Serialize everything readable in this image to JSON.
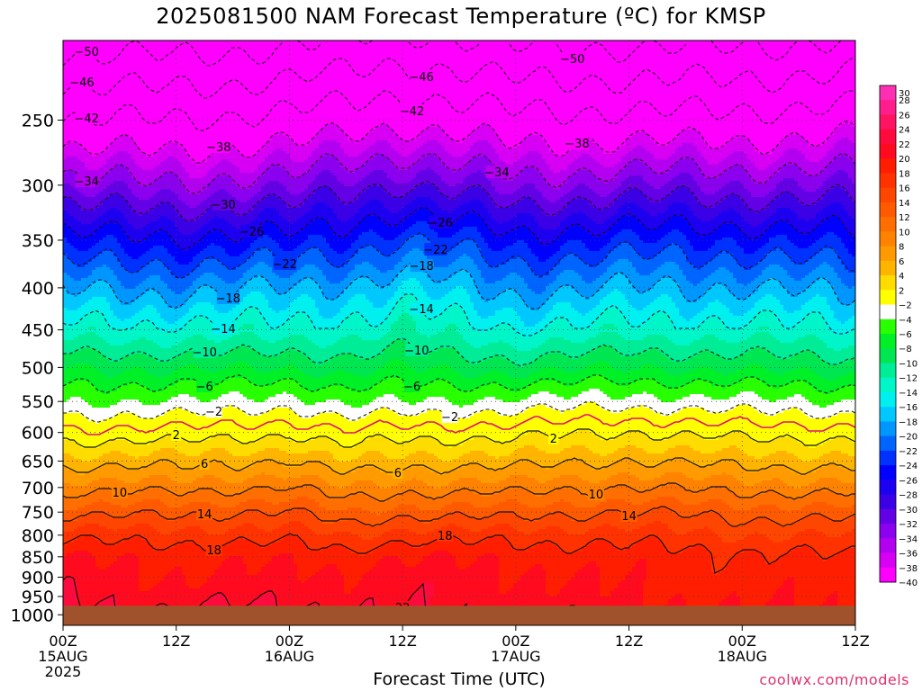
{
  "title": "2025081500 NAM Forecast Temperature (ºC) for KMSP",
  "xlabel": "Forecast Time (UTC)",
  "credit": "coolwx.com/models",
  "chart_data": {
    "type": "heatmap",
    "title": "2025081500 NAM Forecast Temperature (ºC) for KMSP",
    "xlabel": "Forecast Time (UTC)",
    "ylabel": "",
    "x_unit": "forecast hour",
    "xlim": [
      0,
      84
    ],
    "ylim": [
      1030,
      200
    ],
    "y_scale": "log-pressure",
    "y_ticks": [
      250,
      300,
      350,
      400,
      450,
      500,
      550,
      600,
      650,
      700,
      750,
      800,
      850,
      900,
      950,
      1000
    ],
    "x_ticks": [
      {
        "hour": 0,
        "labels": [
          "00Z",
          "15AUG",
          "2025"
        ]
      },
      {
        "hour": 12,
        "labels": [
          "12Z"
        ]
      },
      {
        "hour": 24,
        "labels": [
          "00Z",
          "16AUG"
        ]
      },
      {
        "hour": 36,
        "labels": [
          "12Z"
        ]
      },
      {
        "hour": 48,
        "labels": [
          "00Z",
          "17AUG"
        ]
      },
      {
        "hour": 60,
        "labels": [
          "12Z"
        ]
      },
      {
        "hour": 72,
        "labels": [
          "00Z",
          "18AUG"
        ]
      },
      {
        "hour": 84,
        "labels": [
          "12Z"
        ]
      }
    ],
    "ground_level_hpa": 975,
    "colorbar": {
      "levels": [
        30,
        28,
        26,
        24,
        22,
        20,
        18,
        16,
        14,
        12,
        10,
        8,
        6,
        4,
        2,
        -2,
        -4,
        -6,
        -8,
        -10,
        -12,
        -14,
        -16,
        -18,
        -20,
        -22,
        -24,
        -26,
        -28,
        -30,
        -32,
        -34,
        -36,
        -38,
        -40
      ],
      "colors": [
        "#ff2fb4",
        "#ff1e8c",
        "#ff1464",
        "#ff0a3c",
        "#ff0a1e",
        "#ff1e00",
        "#ff3200",
        "#ff4600",
        "#ff5a00",
        "#ff6e00",
        "#ff8200",
        "#ff9b00",
        "#ffb400",
        "#ffdc00",
        "#ffff00",
        "#ffffff",
        "#28ff00",
        "#00f028",
        "#00e650",
        "#00ec96",
        "#00f5c8",
        "#00f0f0",
        "#00c8ff",
        "#0096ff",
        "#0064ff",
        "#0032ff",
        "#0000ff",
        "#1e00f0",
        "#3c00e6",
        "#6400e6",
        "#8c00f0",
        "#b400f0",
        "#d700f5",
        "#ff00ff"
      ]
    },
    "profiles": [
      {
        "hour": 0,
        "levels": [
          [
            1000,
            23
          ],
          [
            950,
            22
          ],
          [
            900,
            21
          ],
          [
            850,
            20
          ],
          [
            800,
            17
          ],
          [
            750,
            13
          ],
          [
            700,
            9
          ],
          [
            650,
            5
          ],
          [
            600,
            0.5
          ],
          [
            550,
            -4
          ],
          [
            500,
            -8
          ],
          [
            450,
            -13
          ],
          [
            400,
            -18.5
          ],
          [
            350,
            -25
          ],
          [
            300,
            -33
          ],
          [
            250,
            -42
          ],
          [
            200,
            -52
          ]
        ]
      },
      {
        "hour": 12,
        "levels": [
          [
            1000,
            22
          ],
          [
            950,
            21
          ],
          [
            900,
            20
          ],
          [
            850,
            19.5
          ],
          [
            800,
            17
          ],
          [
            750,
            13.5
          ],
          [
            700,
            9
          ],
          [
            650,
            5
          ],
          [
            600,
            0.5
          ],
          [
            550,
            -4
          ],
          [
            500,
            -8.5
          ],
          [
            450,
            -13.5
          ],
          [
            400,
            -19
          ],
          [
            350,
            -25.5
          ],
          [
            300,
            -33.5
          ],
          [
            250,
            -42
          ],
          [
            200,
            -52
          ]
        ]
      },
      {
        "hour": 24,
        "levels": [
          [
            1000,
            23
          ],
          [
            950,
            21.5
          ],
          [
            900,
            20.5
          ],
          [
            850,
            19.5
          ],
          [
            800,
            17
          ],
          [
            750,
            14
          ],
          [
            700,
            10
          ],
          [
            650,
            6
          ],
          [
            600,
            1.5
          ],
          [
            550,
            -3
          ],
          [
            500,
            -8
          ],
          [
            450,
            -13
          ],
          [
            400,
            -18
          ],
          [
            350,
            -25
          ],
          [
            300,
            -33
          ],
          [
            250,
            -41
          ],
          [
            200,
            -51
          ]
        ]
      },
      {
        "hour": 30,
        "levels": [
          [
            1000,
            22
          ],
          [
            950,
            21
          ],
          [
            900,
            20.5
          ],
          [
            850,
            19
          ],
          [
            800,
            16
          ],
          [
            750,
            12
          ],
          [
            700,
            8
          ],
          [
            650,
            4
          ],
          [
            600,
            0
          ],
          [
            550,
            -4.5
          ],
          [
            500,
            -9
          ],
          [
            450,
            -13
          ],
          [
            400,
            -17.5
          ],
          [
            350,
            -24
          ],
          [
            300,
            -31
          ],
          [
            250,
            -40
          ],
          [
            200,
            -50
          ]
        ]
      },
      {
        "hour": 36,
        "levels": [
          [
            1000,
            22
          ],
          [
            950,
            21.5
          ],
          [
            900,
            21
          ],
          [
            850,
            20
          ],
          [
            800,
            17
          ],
          [
            750,
            13
          ],
          [
            700,
            9
          ],
          [
            650,
            5
          ],
          [
            600,
            1
          ],
          [
            550,
            -4
          ],
          [
            500,
            -8
          ],
          [
            450,
            -12
          ],
          [
            400,
            -16
          ],
          [
            350,
            -22
          ],
          [
            300,
            -30
          ],
          [
            250,
            -39
          ],
          [
            200,
            -49
          ]
        ]
      },
      {
        "hour": 48,
        "levels": [
          [
            1000,
            22
          ],
          [
            950,
            21
          ],
          [
            900,
            20.5
          ],
          [
            850,
            19.5
          ],
          [
            800,
            17
          ],
          [
            750,
            13
          ],
          [
            700,
            9
          ],
          [
            650,
            5
          ],
          [
            600,
            1
          ],
          [
            550,
            -3.5
          ],
          [
            500,
            -9
          ],
          [
            450,
            -14
          ],
          [
            400,
            -19
          ],
          [
            350,
            -25
          ],
          [
            300,
            -33
          ],
          [
            250,
            -41
          ],
          [
            200,
            -51
          ]
        ]
      },
      {
        "hour": 60,
        "levels": [
          [
            1000,
            21
          ],
          [
            950,
            20
          ],
          [
            900,
            19.5
          ],
          [
            850,
            19
          ],
          [
            800,
            17
          ],
          [
            750,
            14
          ],
          [
            700,
            10
          ],
          [
            650,
            6
          ],
          [
            600,
            2
          ],
          [
            550,
            -3
          ],
          [
            500,
            -8
          ],
          [
            450,
            -13
          ],
          [
            400,
            -18
          ],
          [
            350,
            -24
          ],
          [
            300,
            -32
          ],
          [
            250,
            -41
          ],
          [
            200,
            -51
          ]
        ]
      },
      {
        "hour": 72,
        "levels": [
          [
            1000,
            20
          ],
          [
            950,
            19.5
          ],
          [
            900,
            19
          ],
          [
            850,
            18.5
          ],
          [
            800,
            16
          ],
          [
            750,
            13
          ],
          [
            700,
            9
          ],
          [
            650,
            5
          ],
          [
            600,
            1
          ],
          [
            550,
            -3.5
          ],
          [
            500,
            -8.5
          ],
          [
            450,
            -13
          ],
          [
            400,
            -18
          ],
          [
            350,
            -24
          ],
          [
            300,
            -32
          ],
          [
            250,
            -41
          ],
          [
            200,
            -51
          ]
        ]
      },
      {
        "hour": 84,
        "levels": [
          [
            1000,
            20
          ],
          [
            950,
            19.5
          ],
          [
            900,
            19
          ],
          [
            850,
            18
          ],
          [
            800,
            16
          ],
          [
            750,
            13
          ],
          [
            700,
            9
          ],
          [
            650,
            5
          ],
          [
            600,
            1
          ],
          [
            550,
            -4
          ],
          [
            500,
            -9
          ],
          [
            450,
            -14
          ],
          [
            400,
            -19
          ],
          [
            350,
            -25
          ],
          [
            300,
            -32
          ],
          [
            250,
            -40
          ],
          [
            200,
            -50
          ]
        ]
      }
    ],
    "contours": [
      {
        "value": -50,
        "style": "dashed",
        "label_hour": 2.5,
        "label_hour2": 54
      },
      {
        "value": -46,
        "style": "dashed",
        "label_hour": 2,
        "label_hour2": 38
      },
      {
        "value": -42,
        "style": "dashed",
        "label_hour": 2.5,
        "label_hour2": 37
      },
      {
        "value": -38,
        "style": "dashed",
        "label_hour": 16.5,
        "label_hour2": 54.5
      },
      {
        "value": -34,
        "style": "dashed",
        "label_hour": 2.5,
        "label_hour2": 46
      },
      {
        "value": -30,
        "style": "dashed",
        "label_hour": 17
      },
      {
        "value": -26,
        "style": "dashed",
        "label_hour": 20,
        "label_hour2": 40
      },
      {
        "value": -22,
        "style": "dashed",
        "label_hour": 23.5,
        "label_hour2": 39.5
      },
      {
        "value": -18,
        "style": "dashed",
        "label_hour": 17.5,
        "label_hour2": 38
      },
      {
        "value": -14,
        "style": "dashed",
        "label_hour": 17,
        "label_hour2": 38
      },
      {
        "value": -10,
        "style": "dashed",
        "label_hour": 15,
        "label_hour2": 37.5
      },
      {
        "value": -6,
        "style": "dashed",
        "label_hour": 15,
        "label_hour2": 37
      },
      {
        "value": -2,
        "style": "dashed",
        "label_hour": 16,
        "label_hour2": 41
      },
      {
        "value": 0,
        "style": "freezing"
      },
      {
        "value": 2,
        "style": "solid",
        "label_hour": 12,
        "label_hour2": 52
      },
      {
        "value": 6,
        "style": "solid",
        "label_hour": 15,
        "label_hour2": 35.5
      },
      {
        "value": 10,
        "style": "solid",
        "label_hour": 6,
        "label_hour2": 56.5
      },
      {
        "value": 14,
        "style": "solid",
        "label_hour": 15,
        "label_hour2": 60
      },
      {
        "value": 18,
        "style": "solid",
        "label_hour": 16,
        "label_hour2": 40.5
      },
      {
        "value": 22,
        "style": "solid",
        "label_hour": 13,
        "label_hour2": 36
      }
    ]
  }
}
